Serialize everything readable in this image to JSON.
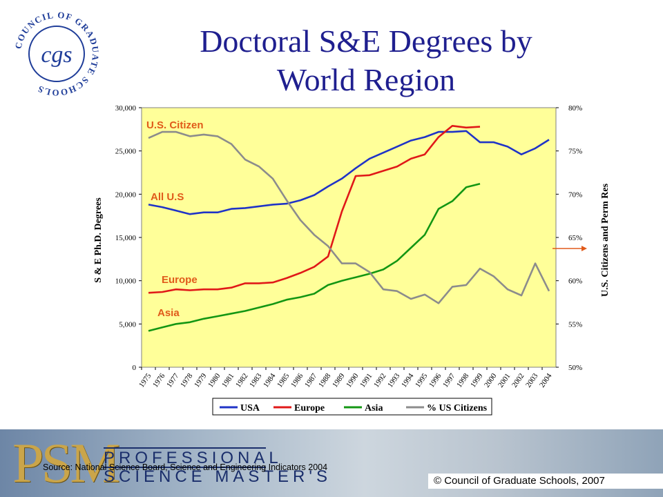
{
  "logo": {
    "ring_text": "COUNCIL OF GRADUATE SCHOOLS",
    "monogram": "cgs",
    "color": "#1f3d99"
  },
  "title": {
    "line1": "Doctoral S&E Degrees by",
    "line2": "World Region"
  },
  "chart_data": {
    "type": "line",
    "ylabel_left": "S & E Ph.D. Degrees",
    "ylabel_right": "U.S. Citizens and Perm Res",
    "y_left_lim": [
      0,
      30000
    ],
    "y_left_ticks": [
      "0",
      "5,000",
      "10,000",
      "15,000",
      "20,000",
      "25,000",
      "30,000"
    ],
    "y_right_lim": [
      50,
      80
    ],
    "y_right_ticks": [
      "50%",
      "55%",
      "60%",
      "65%",
      "70%",
      "75%",
      "80%"
    ],
    "categories": [
      "1975",
      "1976",
      "1977",
      "1978",
      "1979",
      "1980",
      "1981",
      "1982",
      "1983",
      "1984",
      "1985",
      "1986",
      "1987",
      "1988",
      "1989",
      "1990",
      "1991",
      "1992",
      "1993",
      "1994",
      "1995",
      "1996",
      "1997",
      "1998",
      "1999",
      "2000",
      "2001",
      "2002",
      "2003",
      "2004"
    ],
    "background": "#ffff99",
    "series": [
      {
        "name": "USA",
        "axis": "left",
        "color": "#1f33c7",
        "values": [
          18800,
          18500,
          18100,
          17700,
          17900,
          17900,
          18300,
          18400,
          18600,
          18800,
          18900,
          19300,
          19900,
          20900,
          21800,
          23000,
          24100,
          24800,
          25500,
          26200,
          26600,
          27200,
          27200,
          27300,
          26000,
          26000,
          25500,
          24600,
          25300,
          26300
        ]
      },
      {
        "name": "Europe",
        "axis": "left",
        "color": "#e01818",
        "values": [
          8600,
          8700,
          9000,
          8900,
          9000,
          9000,
          9200,
          9700,
          9700,
          9800,
          10300,
          10900,
          11600,
          12800,
          18000,
          22100,
          22200,
          22700,
          23200,
          24100,
          24600,
          26600,
          27900,
          27700,
          27800,
          null,
          null,
          null,
          null,
          null
        ]
      },
      {
        "name": "Asia",
        "axis": "left",
        "color": "#139613",
        "values": [
          4200,
          4600,
          5000,
          5200,
          5600,
          5900,
          6200,
          6500,
          6900,
          7300,
          7800,
          8100,
          8500,
          9500,
          10000,
          10400,
          10800,
          11300,
          12300,
          13800,
          15300,
          18300,
          19200,
          20800,
          21200,
          null,
          null,
          null,
          null,
          null
        ]
      },
      {
        "name": "% US Citizens",
        "axis": "right",
        "color": "#8c8c8c",
        "values": [
          76.5,
          77.2,
          77.2,
          76.7,
          76.9,
          76.7,
          75.8,
          74,
          73.2,
          71.8,
          69.3,
          67,
          65.3,
          64,
          62,
          62,
          61,
          59,
          58.8,
          57.9,
          58.4,
          57.4,
          59.3,
          59.5,
          61.4,
          60.5,
          59,
          58.3,
          62,
          58.8
        ]
      }
    ],
    "annotations": [
      {
        "text": "U.S. Citizen",
        "color": "#e05a1a"
      },
      {
        "text": "All U.S",
        "color": "#e05a1a"
      },
      {
        "text": "Europe",
        "color": "#e05a1a"
      },
      {
        "text": "Asia",
        "color": "#e05a1a"
      }
    ],
    "legend": {
      "placement": "bottom",
      "items": [
        "USA",
        "Europe",
        "Asia",
        "% US Citizens"
      ]
    }
  },
  "footer": {
    "brand_mark": "PSM",
    "brand_line1": "PROFESSIONAL",
    "brand_line2": "SCIENCE MASTER'S",
    "source": "Source: National Science Board, Science and Engineering Indicators 2004",
    "copyright": "©  Council of Graduate Schools, 2007"
  }
}
